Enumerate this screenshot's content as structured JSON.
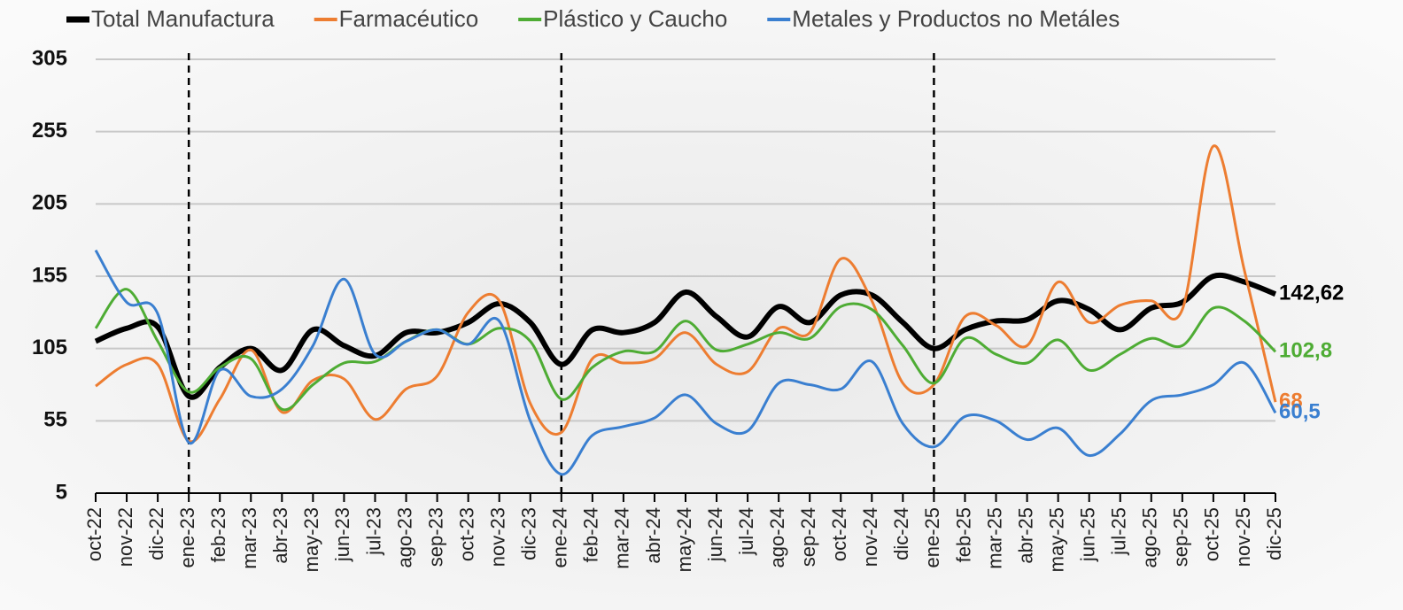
{
  "chart_data": {
    "type": "line",
    "categories": [
      "oct-22",
      "nov-22",
      "dic-22",
      "ene-23",
      "feb-23",
      "mar-23",
      "abr-23",
      "may-23",
      "jun-23",
      "jul-23",
      "ago-23",
      "sep-23",
      "oct-23",
      "nov-23",
      "dic-23",
      "ene-24",
      "feb-24",
      "mar-24",
      "abr-24",
      "may-24",
      "jun-24",
      "jul-24",
      "ago-24",
      "sep-24",
      "oct-24",
      "nov-24",
      "dic-24",
      "ene-25",
      "feb-25",
      "mar-25",
      "abr-25",
      "may-25",
      "jun-25",
      "jul-25",
      "ago-25",
      "sep-25",
      "oct-25",
      "nov-25",
      "dic-25"
    ],
    "series": [
      {
        "name": "Total Manufactura",
        "color": "#000000",
        "width": 6,
        "values": [
          110,
          119,
          120,
          72,
          92,
          105,
          90,
          118,
          107,
          100,
          116,
          116,
          123,
          136,
          123,
          94,
          118,
          116,
          123,
          144,
          127,
          113,
          134,
          123,
          142,
          142,
          123,
          105,
          118,
          124,
          125,
          138,
          132,
          118,
          133,
          137,
          155,
          151,
          142.62
        ],
        "value_labels": [
          null,
          null,
          null,
          null,
          null,
          null,
          null,
          null,
          null,
          null,
          null,
          null,
          null,
          null,
          null,
          null,
          null,
          null,
          null,
          null,
          null,
          null,
          null,
          null,
          null,
          null,
          null,
          null,
          null,
          null,
          null,
          null,
          null,
          null,
          null,
          null,
          null,
          null,
          "142,62"
        ]
      },
      {
        "name": "Farmacéutico",
        "color": "#ed7d31",
        "width": 3,
        "values": [
          79,
          94,
          94,
          41,
          70,
          104,
          61,
          83,
          84,
          56,
          77,
          86,
          130,
          138,
          67,
          47,
          98,
          95,
          98,
          116,
          94,
          89,
          119,
          116,
          167,
          138,
          81,
          80,
          127,
          121,
          107,
          151,
          123,
          135,
          138,
          132,
          245,
          159,
          68
        ],
        "value_labels": [
          null,
          null,
          null,
          null,
          null,
          null,
          null,
          null,
          null,
          null,
          null,
          null,
          null,
          null,
          null,
          null,
          null,
          null,
          null,
          null,
          null,
          null,
          null,
          null,
          null,
          null,
          null,
          null,
          null,
          null,
          null,
          null,
          null,
          null,
          null,
          null,
          null,
          null,
          "68"
        ]
      },
      {
        "name": "Plástico y Caucho",
        "color": "#4eac34",
        "width": 3,
        "values": [
          119,
          146,
          110,
          75,
          92,
          98,
          63,
          80,
          95,
          96,
          110,
          118,
          108,
          119,
          110,
          70,
          92,
          103,
          103,
          124,
          104,
          108,
          116,
          112,
          134,
          132,
          107,
          81,
          112,
          101,
          95,
          111,
          90,
          101,
          112,
          107,
          133,
          124,
          102.8
        ],
        "value_labels": [
          null,
          null,
          null,
          null,
          null,
          null,
          null,
          null,
          null,
          null,
          null,
          null,
          null,
          null,
          null,
          null,
          null,
          null,
          null,
          null,
          null,
          null,
          null,
          null,
          null,
          null,
          null,
          null,
          null,
          null,
          null,
          null,
          null,
          null,
          null,
          null,
          null,
          null,
          "102,8"
        ]
      },
      {
        "name": "Metales y Productos no Metáles",
        "color": "#3a7fd0",
        "width": 3,
        "values": [
          173,
          137,
          129,
          40,
          90,
          72,
          77,
          107,
          153,
          101,
          110,
          118,
          108,
          124,
          55,
          18,
          45,
          51,
          57,
          73,
          53,
          48,
          81,
          80,
          77,
          96,
          53,
          37,
          58,
          55,
          42,
          50,
          31,
          46,
          69,
          73,
          80,
          95,
          60.5
        ],
        "value_labels": [
          null,
          null,
          null,
          null,
          null,
          null,
          null,
          null,
          null,
          null,
          null,
          null,
          null,
          null,
          null,
          null,
          null,
          null,
          null,
          null,
          null,
          null,
          null,
          null,
          null,
          null,
          null,
          null,
          null,
          null,
          null,
          null,
          null,
          null,
          null,
          null,
          null,
          null,
          "60,5"
        ]
      }
    ],
    "ylim": [
      5,
      305
    ],
    "yticks": [
      5,
      55,
      105,
      155,
      205,
      255,
      305
    ],
    "grid": true,
    "dashed_lines": [
      "ene-23",
      "ene-24",
      "ene-25"
    ],
    "legend": "top"
  }
}
